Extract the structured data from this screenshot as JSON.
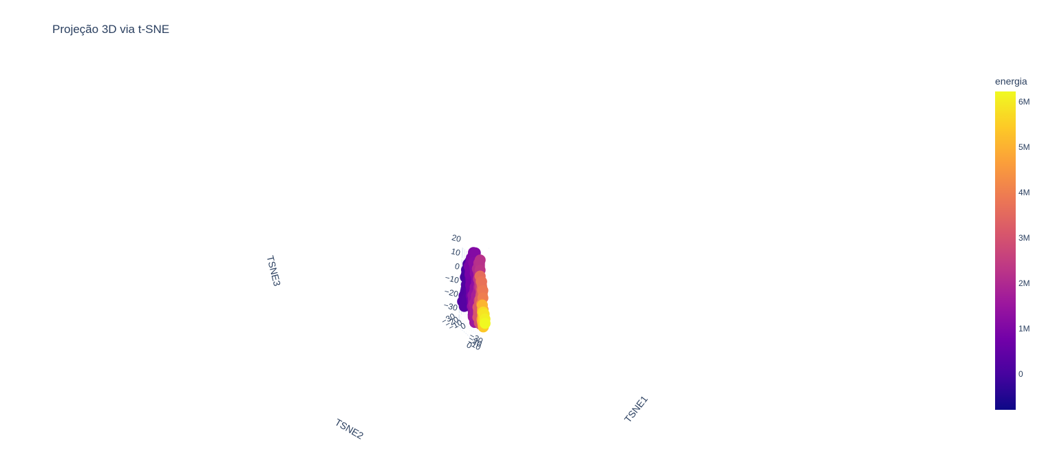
{
  "chart_data": {
    "type": "scatter3d",
    "title": "Projeção 3D via t-SNE",
    "axes": {
      "x": {
        "label": "TSNE1",
        "ticks": [
          "−30",
          "−20",
          "−10",
          "0"
        ],
        "range": [
          -35,
          25
        ]
      },
      "y": {
        "label": "TSNE2",
        "ticks": [
          "−30",
          "−20",
          "−10",
          "0"
        ],
        "range": [
          -35,
          25
        ]
      },
      "z": {
        "label": "TSNE3",
        "ticks": [
          "−30",
          "−20",
          "−10",
          "0",
          "10",
          "20"
        ],
        "range": [
          -30,
          28
        ]
      }
    },
    "marker_mode": "lines+markers",
    "colorbar": {
      "title": "energia",
      "ticks": [
        "0",
        "1M",
        "2M",
        "3M",
        "4M",
        "5M",
        "6M"
      ],
      "range": [
        -780000,
        6220000
      ],
      "colorscale": [
        "#0d0887",
        "#46039f",
        "#7201a8",
        "#9c179e",
        "#bd3786",
        "#d8576b",
        "#ed7953",
        "#fb9f3a",
        "#fdca26",
        "#f0f921"
      ]
    },
    "series": [
      {
        "energia_start": 0,
        "energia_end": 400000,
        "points": [
          [
            10,
            -25,
            5
          ],
          [
            14,
            -22,
            12
          ],
          [
            18,
            -18,
            18
          ],
          [
            20,
            -12,
            22
          ],
          [
            16,
            -8,
            16
          ],
          [
            12,
            -14,
            8
          ],
          [
            16,
            -20,
            2
          ],
          [
            20,
            -24,
            -6
          ],
          [
            16,
            -28,
            -12
          ],
          [
            10,
            -24,
            -16
          ],
          [
            6,
            -18,
            -10
          ],
          [
            8,
            -12,
            -2
          ],
          [
            12,
            -6,
            4
          ],
          [
            14,
            0,
            10
          ],
          [
            10,
            2,
            16
          ]
        ]
      },
      {
        "energia_start": 400000,
        "energia_end": 900000,
        "points": [
          [
            10,
            2,
            16
          ],
          [
            4,
            -2,
            20
          ],
          [
            -2,
            -6,
            22
          ],
          [
            -6,
            -10,
            16
          ],
          [
            -2,
            -14,
            10
          ],
          [
            2,
            -10,
            4
          ],
          [
            -2,
            -6,
            -2
          ],
          [
            -6,
            -2,
            -8
          ],
          [
            -2,
            2,
            -14
          ],
          [
            4,
            0,
            -18
          ],
          [
            8,
            -4,
            -12
          ],
          [
            4,
            -8,
            -6
          ],
          [
            0,
            -12,
            0
          ],
          [
            -4,
            -16,
            6
          ],
          [
            -8,
            -20,
            10
          ]
        ]
      },
      {
        "energia_start": 900000,
        "energia_end": 1700000,
        "points": [
          [
            -8,
            -20,
            10
          ],
          [
            -12,
            -16,
            16
          ],
          [
            -16,
            -12,
            20
          ],
          [
            -12,
            -6,
            22
          ],
          [
            -6,
            -8,
            16
          ],
          [
            -4,
            -2,
            10
          ],
          [
            -8,
            2,
            4
          ],
          [
            -12,
            -2,
            -2
          ],
          [
            -8,
            -6,
            -8
          ],
          [
            -2,
            -4,
            -14
          ],
          [
            2,
            0,
            -20
          ],
          [
            -2,
            4,
            -24
          ],
          [
            -8,
            2,
            -20
          ],
          [
            -12,
            -2,
            -14
          ]
        ]
      },
      {
        "energia_start": 1700000,
        "energia_end": 2700000,
        "points": [
          [
            -12,
            -2,
            -14
          ],
          [
            -16,
            2,
            -8
          ],
          [
            -20,
            6,
            -2
          ],
          [
            -24,
            4,
            4
          ],
          [
            -20,
            0,
            10
          ],
          [
            -16,
            4,
            16
          ],
          [
            -12,
            8,
            20
          ],
          [
            -8,
            10,
            14
          ],
          [
            -4,
            8,
            8
          ],
          [
            -8,
            12,
            2
          ],
          [
            -12,
            14,
            -4
          ],
          [
            -16,
            10,
            -10
          ],
          [
            -20,
            12,
            -16
          ]
        ]
      },
      {
        "energia_start": 2700000,
        "energia_end": 3600000,
        "points": [
          [
            -20,
            12,
            -16
          ],
          [
            -16,
            16,
            -20
          ],
          [
            -10,
            18,
            -24
          ],
          [
            -4,
            16,
            -22
          ],
          [
            0,
            12,
            -18
          ],
          [
            -4,
            10,
            -12
          ],
          [
            -8,
            14,
            -6
          ],
          [
            -14,
            16,
            0
          ],
          [
            -18,
            12,
            4
          ],
          [
            -22,
            8,
            6
          ]
        ]
      },
      {
        "energia_start": 3600000,
        "energia_end": 4500000,
        "points": [
          [
            -22,
            8,
            6
          ],
          [
            -26,
            12,
            2
          ],
          [
            -28,
            16,
            -4
          ],
          [
            -24,
            18,
            -8
          ],
          [
            -20,
            16,
            -12
          ],
          [
            -24,
            20,
            -16
          ],
          [
            -28,
            22,
            -20
          ],
          [
            -26,
            18,
            -24
          ]
        ]
      },
      {
        "energia_start": 4500000,
        "energia_end": 5400000,
        "points": [
          [
            -26,
            18,
            -24
          ],
          [
            -22,
            22,
            -26
          ],
          [
            -18,
            24,
            -22
          ],
          [
            -14,
            22,
            -18
          ],
          [
            -16,
            20,
            -14
          ],
          [
            -12,
            20,
            -10
          ],
          [
            -8,
            22,
            -14
          ],
          [
            -6,
            24,
            -20
          ],
          [
            -10,
            26,
            -24
          ]
        ]
      },
      {
        "energia_start": 5400000,
        "energia_end": 6200000,
        "points": [
          [
            -10,
            26,
            -24
          ],
          [
            -14,
            24,
            -20
          ],
          [
            -18,
            22,
            -16
          ],
          [
            -22,
            24,
            -18
          ],
          [
            -26,
            26,
            -22
          ],
          [
            -30,
            26,
            -26
          ]
        ]
      }
    ]
  }
}
